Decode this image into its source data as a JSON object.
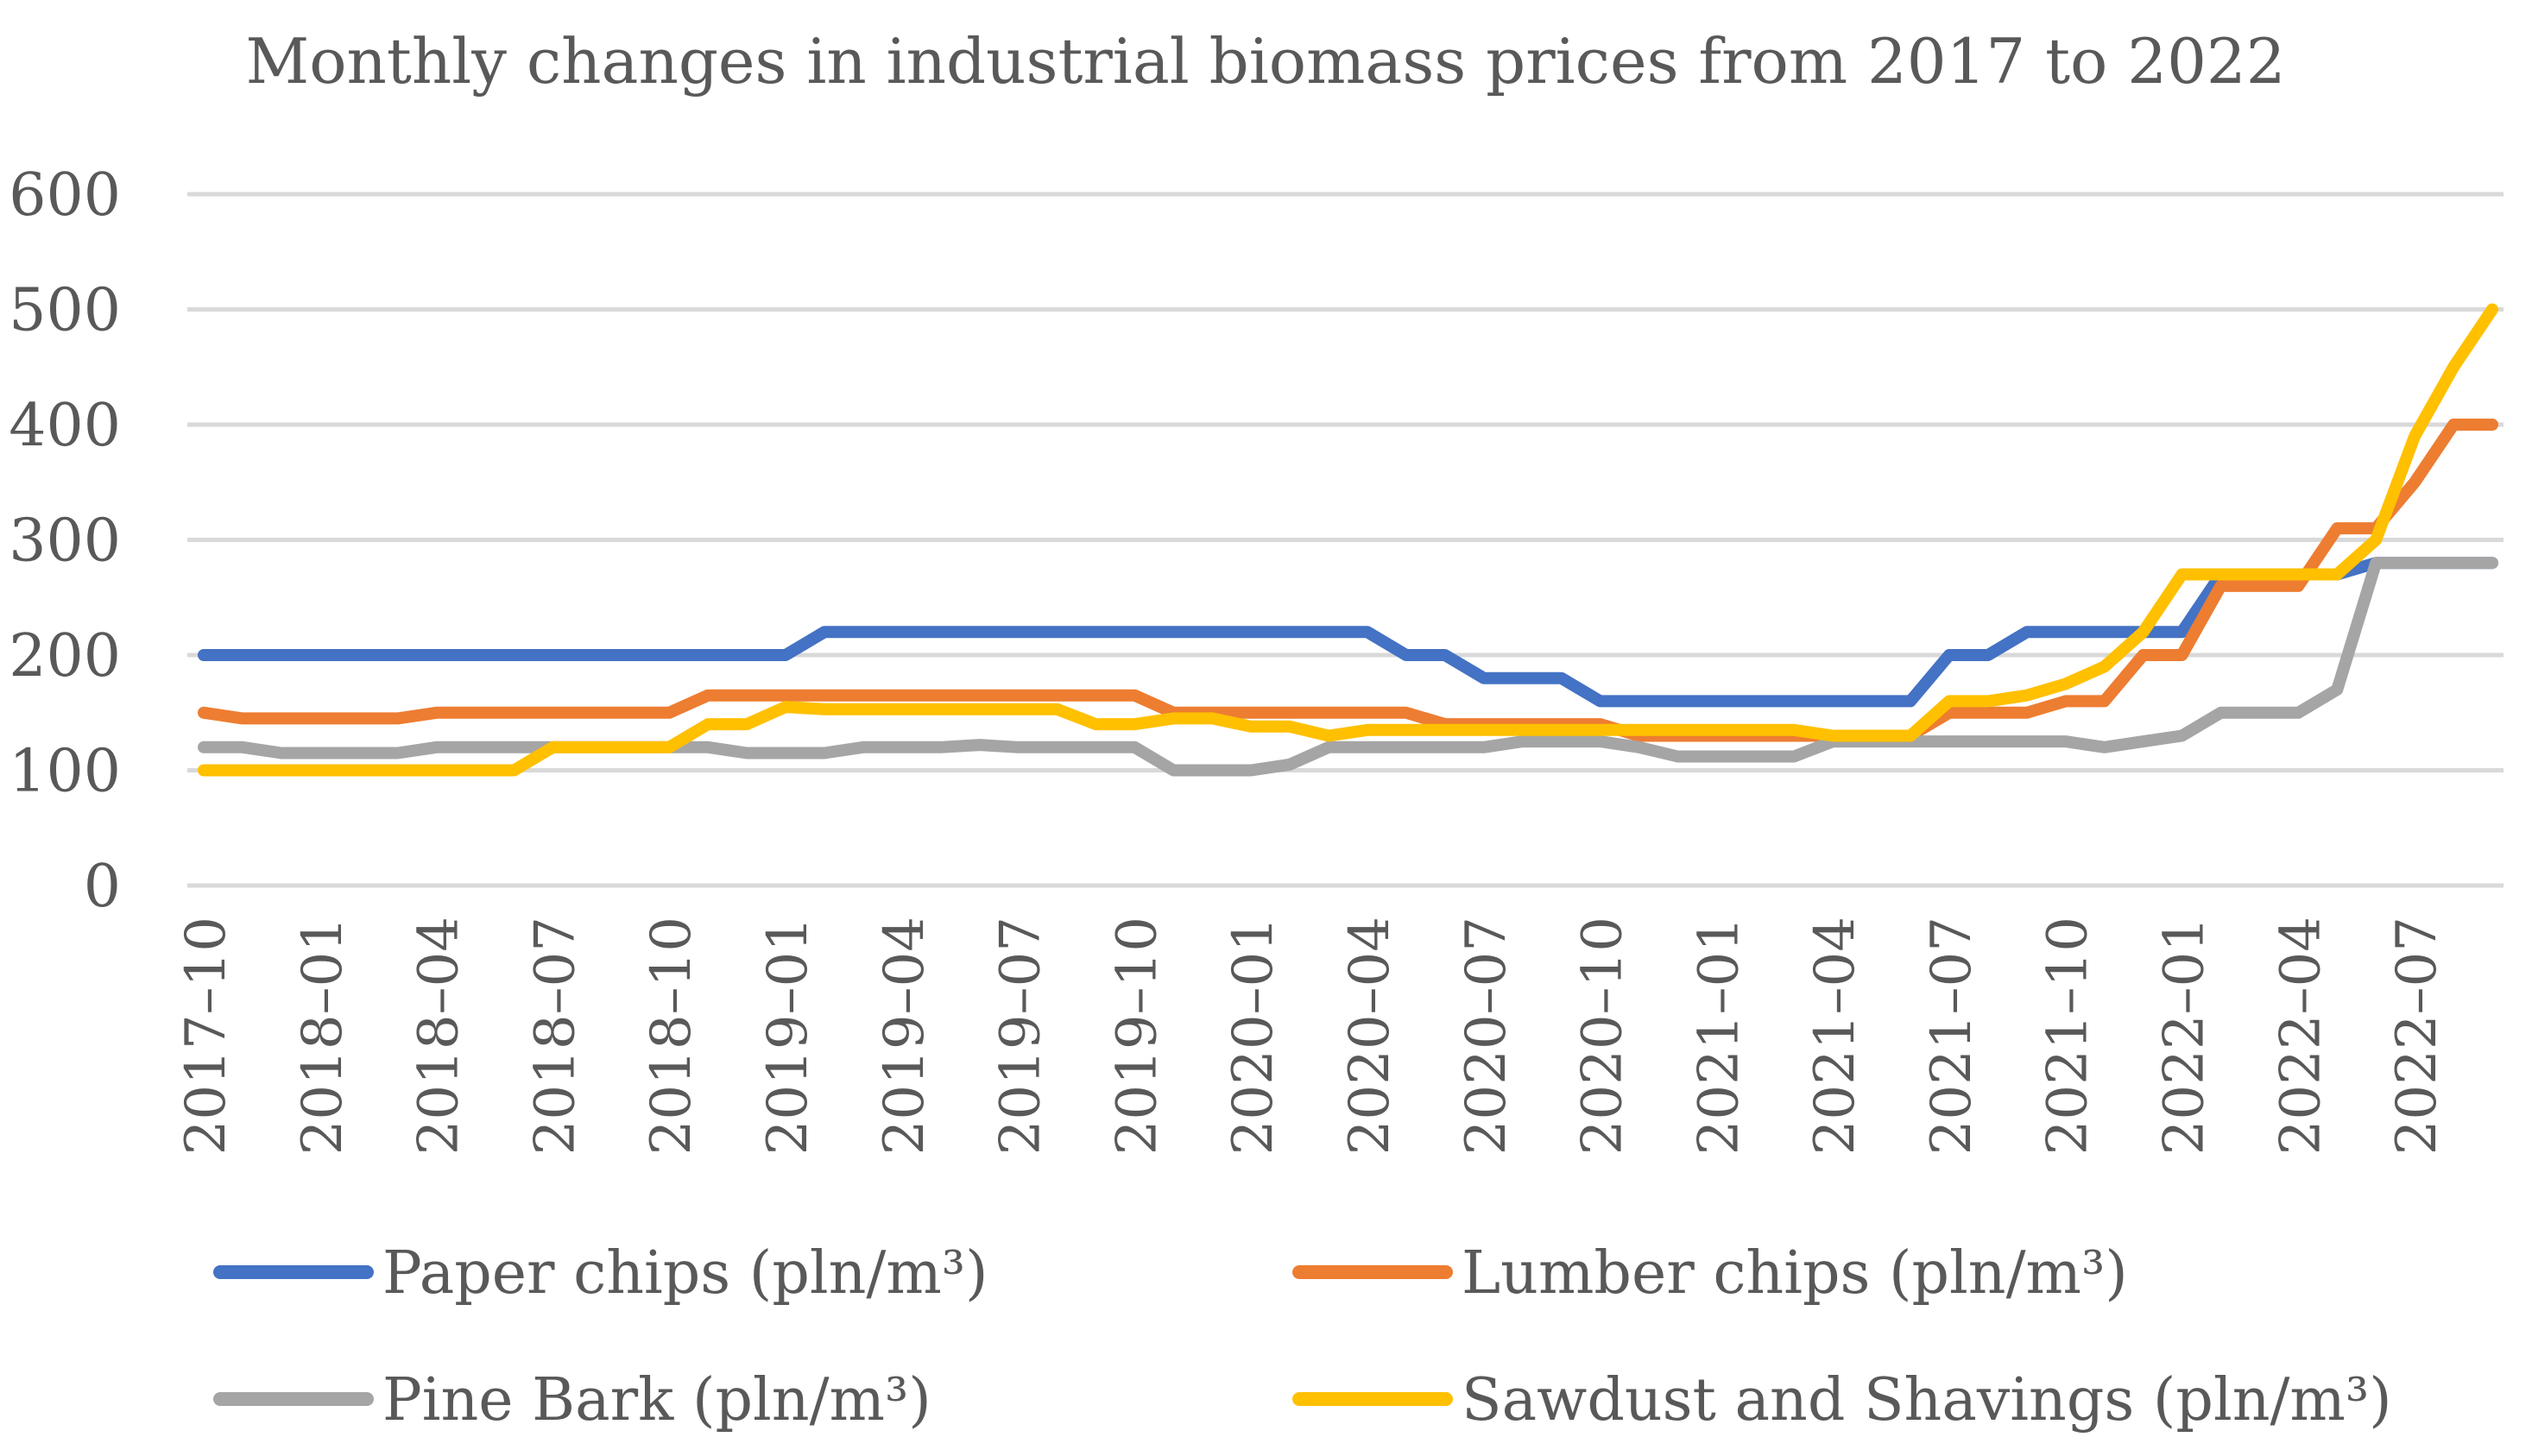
{
  "chart_data": {
    "type": "line",
    "title": "Monthly changes in industrial biomass prices from 2017 to 2022",
    "xlabel": "",
    "ylabel": "",
    "ylim": [
      0,
      600
    ],
    "y_ticks": [
      0,
      100,
      200,
      300,
      400,
      500,
      600
    ],
    "grid": true,
    "legend_position": "bottom",
    "x": [
      "2017-10",
      "2017-11",
      "2017-12",
      "2018-01",
      "2018-02",
      "2018-03",
      "2018-04",
      "2018-05",
      "2018-06",
      "2018-07",
      "2018-08",
      "2018-09",
      "2018-10",
      "2018-11",
      "2018-12",
      "2019-01",
      "2019-02",
      "2019-03",
      "2019-04",
      "2019-05",
      "2019-06",
      "2019-07",
      "2019-08",
      "2019-09",
      "2019-10",
      "2019-11",
      "2019-12",
      "2020-01",
      "2020-02",
      "2020-03",
      "2020-04",
      "2020-05",
      "2020-06",
      "2020-07",
      "2020-08",
      "2020-09",
      "2020-10",
      "2020-11",
      "2020-12",
      "2021-01",
      "2021-02",
      "2021-03",
      "2021-04",
      "2021-05",
      "2021-06",
      "2021-07",
      "2021-08",
      "2021-09",
      "2021-10",
      "2021-11",
      "2021-12",
      "2022-01",
      "2022-02",
      "2022-03",
      "2022-04",
      "2022-05",
      "2022-06",
      "2022-07",
      "2022-08",
      "2022-09"
    ],
    "x_tick_labels": [
      "2017–10",
      "2018–01",
      "2018–04",
      "2018–07",
      "2018–10",
      "2019–01",
      "2019–04",
      "2019–07",
      "2019–10",
      "2020–01",
      "2020–04",
      "2020–07",
      "2020–10",
      "2021–01",
      "2021–04",
      "2021–07",
      "2021–10",
      "2022–01",
      "2022–04",
      "2022–07"
    ],
    "series": [
      {
        "name": "Paper chips (pln/m³)",
        "color": "#4472C4",
        "values": [
          200,
          200,
          200,
          200,
          200,
          200,
          200,
          200,
          200,
          200,
          200,
          200,
          200,
          200,
          200,
          200,
          220,
          220,
          220,
          220,
          220,
          220,
          220,
          220,
          220,
          220,
          220,
          220,
          220,
          220,
          220,
          200,
          200,
          180,
          180,
          180,
          160,
          160,
          160,
          160,
          160,
          160,
          160,
          160,
          160,
          200,
          200,
          220,
          220,
          220,
          220,
          220,
          270,
          270,
          270,
          270,
          280,
          280,
          280,
          280
        ]
      },
      {
        "name": "Lumber chips (pln/m³)",
        "color": "#ED7D31",
        "values": [
          150,
          145,
          145,
          145,
          145,
          145,
          150,
          150,
          150,
          150,
          150,
          150,
          150,
          165,
          165,
          165,
          165,
          165,
          165,
          165,
          165,
          165,
          165,
          165,
          165,
          150,
          150,
          150,
          150,
          150,
          150,
          150,
          140,
          140,
          140,
          140,
          140,
          130,
          130,
          130,
          130,
          130,
          130,
          130,
          130,
          150,
          150,
          150,
          160,
          160,
          200,
          200,
          260,
          260,
          260,
          310,
          310,
          350,
          400,
          400
        ]
      },
      {
        "name": "Pine Bark (pln/m³)",
        "color": "#A5A5A5",
        "values": [
          120,
          120,
          115,
          115,
          115,
          115,
          120,
          120,
          120,
          120,
          120,
          120,
          120,
          120,
          115,
          115,
          115,
          120,
          120,
          120,
          122,
          120,
          120,
          120,
          120,
          100,
          100,
          100,
          105,
          120,
          120,
          120,
          120,
          120,
          125,
          125,
          125,
          120,
          112,
          112,
          112,
          112,
          125,
          125,
          125,
          125,
          125,
          125,
          125,
          120,
          125,
          130,
          150,
          150,
          150,
          170,
          280,
          280,
          280,
          280
        ]
      },
      {
        "name": "Sawdust and Shavings (pln/m³)",
        "color": "#FFC000",
        "values": [
          100,
          100,
          100,
          100,
          100,
          100,
          100,
          100,
          100,
          120,
          120,
          120,
          120,
          140,
          140,
          155,
          153,
          153,
          153,
          153,
          153,
          153,
          153,
          140,
          140,
          145,
          145,
          138,
          138,
          130,
          135,
          135,
          135,
          135,
          135,
          135,
          135,
          135,
          135,
          135,
          135,
          135,
          130,
          130,
          130,
          160,
          160,
          165,
          175,
          190,
          220,
          270,
          270,
          270,
          270,
          270,
          300,
          390,
          450,
          500
        ]
      }
    ]
  }
}
